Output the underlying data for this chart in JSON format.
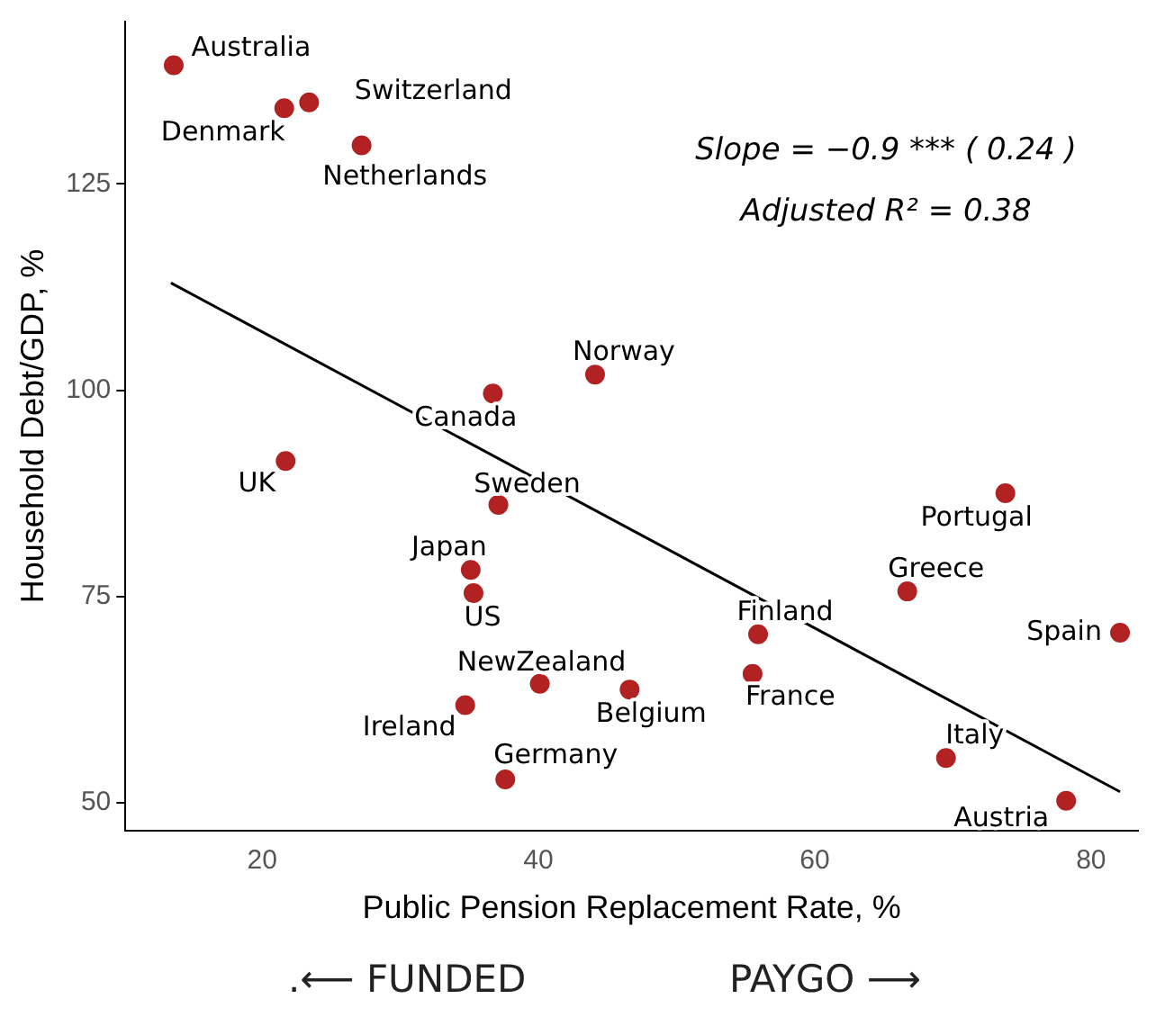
{
  "chart_data": {
    "type": "scatter",
    "xlabel": "Public Pension Replacement Rate, %",
    "ylabel": "Household Debt/GDP, %",
    "xlim": [
      10.1,
      83.4
    ],
    "ylim": [
      46.6,
      144.7
    ],
    "xticks": [
      20,
      40,
      60,
      80
    ],
    "yticks": [
      50,
      75,
      100,
      125
    ],
    "grid": false,
    "legend": false,
    "series": [
      {
        "marker": "circle",
        "color": "#b22222",
        "x": [
          13.6,
          21.6,
          23.4,
          27.2,
          36.7,
          44.1,
          21.7,
          37.1,
          35.1,
          35.3,
          40.1,
          34.7,
          37.6,
          46.6,
          55.9,
          55.5,
          66.7,
          73.8,
          82.1,
          69.5,
          78.2
        ],
        "values": [
          139.4,
          134.2,
          134.9,
          129.7,
          99.6,
          101.9,
          91.4,
          86.1,
          78.2,
          75.4,
          64.4,
          61.8,
          52.8,
          63.7,
          70.4,
          65.6,
          75.6,
          87.5,
          70.6,
          55.4,
          50.2
        ]
      },
      {
        "type": "line",
        "marker": "none",
        "color": "#000000",
        "x": [
          13.4,
          82.1
        ],
        "values": [
          113.0,
          51.3
        ]
      }
    ],
    "annotations": [
      {
        "text": "Australia",
        "x": 13.6,
        "y": 139.4
      },
      {
        "text": "Denmark",
        "x": 21.6,
        "y": 134.2
      },
      {
        "text": "Switzerland",
        "x": 23.4,
        "y": 134.9
      },
      {
        "text": "Netherlands",
        "x": 27.2,
        "y": 129.7
      },
      {
        "text": "Canada",
        "x": 36.7,
        "y": 99.6
      },
      {
        "text": "Norway",
        "x": 44.1,
        "y": 101.9
      },
      {
        "text": "UK",
        "x": 21.7,
        "y": 91.4
      },
      {
        "text": "Sweden",
        "x": 37.1,
        "y": 86.1
      },
      {
        "text": "Japan",
        "x": 35.1,
        "y": 78.2
      },
      {
        "text": "US",
        "x": 35.3,
        "y": 75.4
      },
      {
        "text": "NewZealand",
        "x": 40.1,
        "y": 64.4
      },
      {
        "text": "Ireland",
        "x": 34.7,
        "y": 61.8
      },
      {
        "text": "Germany",
        "x": 37.6,
        "y": 52.8
      },
      {
        "text": "Belgium",
        "x": 46.6,
        "y": 63.7
      },
      {
        "text": "Finland",
        "x": 55.9,
        "y": 70.4
      },
      {
        "text": "France",
        "x": 55.5,
        "y": 65.6
      },
      {
        "text": "Greece",
        "x": 66.7,
        "y": 75.6
      },
      {
        "text": "Portugal",
        "x": 73.8,
        "y": 87.5
      },
      {
        "text": "Spain",
        "x": 82.1,
        "y": 70.6
      },
      {
        "text": "Italy",
        "x": 69.5,
        "y": 55.4
      },
      {
        "text": "Austria",
        "x": 78.2,
        "y": 50.2
      },
      "Slope = −0.9 *** ( 0.24 )",
      "Adjusted R² = 0.38",
      ".⟵ FUNDED",
      "PAYGO ⟶"
    ]
  }
}
